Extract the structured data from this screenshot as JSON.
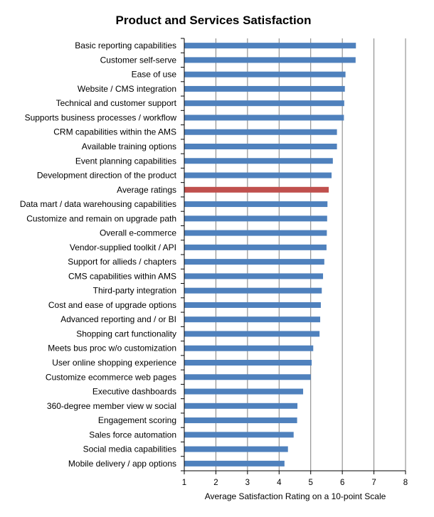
{
  "chart_data": {
    "type": "bar",
    "orientation": "horizontal",
    "title": "Product and Services Satisfaction",
    "xlabel": "Average Satisfaction Rating on a 10-point Scale",
    "ylabel": "",
    "xlim": [
      1,
      8
    ],
    "xticks": [
      "1",
      "2",
      "3",
      "4",
      "5",
      "6",
      "7",
      "8"
    ],
    "grid": "vertical",
    "legend": "none",
    "colors": {
      "bar": "#4F81BD",
      "highlight": "#C0504D",
      "grid": "#7f7f7f"
    },
    "highlight_category": "Average ratings",
    "categories": [
      "Basic reporting capabilities",
      "Customer self-serve",
      "Ease of use",
      "Website / CMS integration",
      "Technical and customer support",
      "Supports business processes / workflow",
      "CRM capabilities within the AMS",
      "Available training options",
      "Event planning capabilities",
      "Development direction of the product",
      "Average ratings",
      "Data mart / data warehousing capabilities",
      "Customize and remain on upgrade path",
      "Overall e-commerce",
      "Vendor-supplied toolkit / API",
      "Support for allieds / chapters",
      "CMS capabilities within AMS",
      "Third-party integration",
      "Cost and ease of upgrade options",
      "Advanced reporting and / or BI",
      "Shopping cart functionality",
      "Meets bus proc w/o customization",
      "User online shopping experience",
      "Customize ecommerce web pages",
      "Executive dashboards",
      "360-degree member view w social",
      "Engagement scoring",
      "Sales force automation",
      "Social media capabilities",
      "Mobile delivery / app options"
    ],
    "values": [
      6.43,
      6.42,
      6.1,
      6.08,
      6.06,
      6.05,
      5.83,
      5.83,
      5.7,
      5.66,
      5.57,
      5.53,
      5.52,
      5.51,
      5.5,
      5.43,
      5.39,
      5.35,
      5.32,
      5.3,
      5.28,
      5.08,
      5.03,
      5.0,
      4.76,
      4.58,
      4.57,
      4.46,
      4.28,
      4.17
    ]
  }
}
